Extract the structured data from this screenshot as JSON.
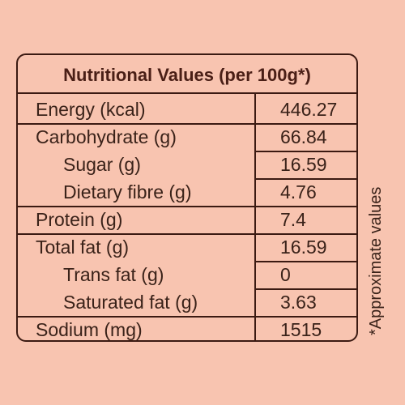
{
  "table": {
    "title": "Nutritional Values (per 100g*)",
    "rows": [
      {
        "label": "Energy (kcal)",
        "value": "446.27"
      },
      {
        "label": "Carbohydrate (g)",
        "value": "66.84"
      },
      {
        "label": "Sugar (g)",
        "value": "16.59"
      },
      {
        "label": "Dietary fibre (g)",
        "value": "4.76"
      },
      {
        "label": "Protein (g)",
        "value": "7.4"
      },
      {
        "label": "Total fat (g)",
        "value": "16.59"
      },
      {
        "label": "Trans fat (g)",
        "value": "0"
      },
      {
        "label": "Saturated fat (g)",
        "value": "3.63"
      },
      {
        "label": "Sodium (mg)",
        "value": "1515"
      }
    ]
  },
  "footnote": "*Approximate values",
  "colors": {
    "background": "#f8c4b0",
    "border": "#3b1a12",
    "title_text": "#4a1f16",
    "body_text": "#3a2219"
  }
}
